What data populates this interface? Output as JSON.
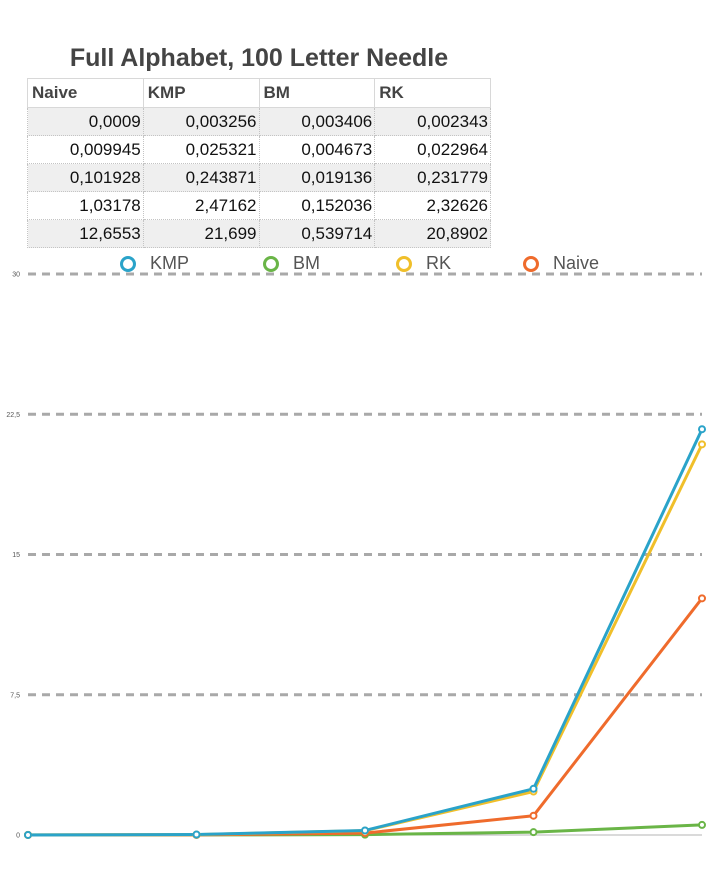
{
  "chart_data": {
    "type": "line",
    "title": "Full Alphabet, 100 Letter Needle",
    "table": {
      "headers": [
        "Naive",
        "KMP",
        "BM",
        "RK"
      ],
      "rows": [
        [
          "0,0009",
          "0,003256",
          "0,003406",
          "0,002343"
        ],
        [
          "0,009945",
          "0,025321",
          "0,004673",
          "0,022964"
        ],
        [
          "0,101928",
          "0,243871",
          "0,019136",
          "0,231779"
        ],
        [
          "1,03178",
          "2,47162",
          "0,152036",
          "2,32626"
        ],
        [
          "12,6553",
          "21,699",
          "0,539714",
          "20,8902"
        ]
      ]
    },
    "x": [
      1,
      2,
      3,
      4,
      5
    ],
    "series": [
      {
        "name": "KMP",
        "color": "#2aa3c9",
        "values": [
          0.003256,
          0.025321,
          0.243871,
          2.47162,
          21.699
        ]
      },
      {
        "name": "BM",
        "color": "#6ab547",
        "values": [
          0.003406,
          0.004673,
          0.019136,
          0.152036,
          0.539714
        ]
      },
      {
        "name": "RK",
        "color": "#f0bf2a",
        "values": [
          0.002343,
          0.022964,
          0.231779,
          2.32626,
          20.8902
        ]
      },
      {
        "name": "Naive",
        "color": "#ef6b2c",
        "values": [
          0.0009,
          0.009945,
          0.101928,
          1.03178,
          12.6553
        ]
      }
    ],
    "ylim": [
      0,
      30
    ],
    "yticks": [
      "0",
      "7,5",
      "15",
      "22,5",
      "30"
    ],
    "ytick_values": [
      0,
      7.5,
      15,
      22.5,
      30
    ],
    "grid": true,
    "legend_position": "top"
  }
}
